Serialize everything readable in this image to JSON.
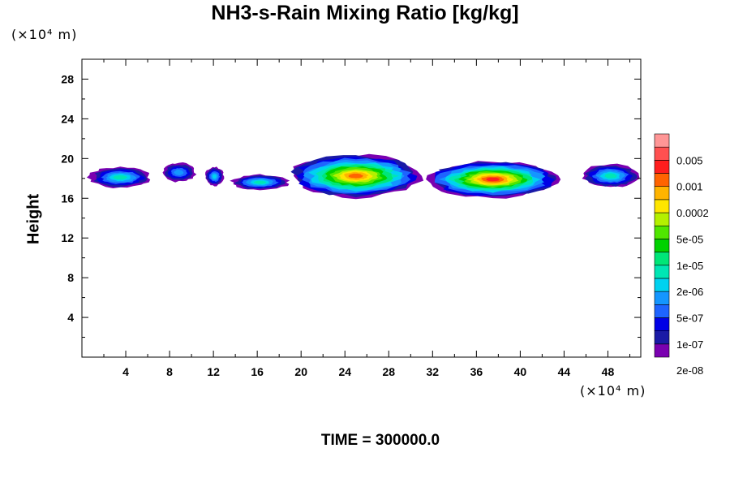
{
  "chart_data": {
    "type": "heatmap",
    "title": "NH3-s-Rain Mixing Ratio [kg/kg]",
    "xlabel": "",
    "ylabel": "Height",
    "x_unit": "(×10⁴ m)",
    "y_unit": "(×10⁴ m)",
    "xlim": [
      0,
      51
    ],
    "ylim": [
      0,
      30
    ],
    "x_ticks": [
      "4",
      "8",
      "12",
      "16",
      "20",
      "24",
      "28",
      "32",
      "36",
      "40",
      "44",
      "48"
    ],
    "y_ticks": [
      "4",
      "8",
      "12",
      "16",
      "20",
      "24",
      "28"
    ],
    "colorbar": {
      "labels": [
        "0.005",
        "0.001",
        "0.0002",
        "5e-05",
        "1e-05",
        "2e-06",
        "5e-07",
        "1e-07",
        "2e-08"
      ],
      "colors": [
        "#7a00b0",
        "#1a1aa6",
        "#0000e6",
        "#1e64ff",
        "#1496ff",
        "#00d2f0",
        "#00e6b4",
        "#00e678",
        "#00d200",
        "#50e600",
        "#b4f000",
        "#ffe600",
        "#ffb400",
        "#ff6400",
        "#ff1e1e",
        "#ff5050",
        "#ff9696"
      ]
    },
    "cloud_layer": {
      "altitude_range": [
        16,
        20.5
      ],
      "blobs": [
        {
          "x": 0.5,
          "x1": 6.5,
          "y0": 17.0,
          "y1": 19.2,
          "level": 6
        },
        {
          "x": 7.2,
          "x1": 10.5,
          "y0": 17.6,
          "y1": 19.6,
          "level": 4
        },
        {
          "x": 11.2,
          "x1": 13.0,
          "y0": 17.2,
          "y1": 19.2,
          "level": 5
        },
        {
          "x": 13.5,
          "x1": 19.0,
          "y0": 16.8,
          "y1": 18.4,
          "level": 6
        },
        {
          "x": 18.5,
          "x1": 31.5,
          "y0": 16.0,
          "y1": 20.5,
          "level": 13
        },
        {
          "x": 31.0,
          "x1": 44.0,
          "y0": 16.0,
          "y1": 19.8,
          "level": 14
        },
        {
          "x": 45.5,
          "x1": 51.0,
          "y0": 17.0,
          "y1": 19.5,
          "level": 6
        }
      ]
    }
  },
  "footer": {
    "time_label": "TIME = 300000.0"
  }
}
